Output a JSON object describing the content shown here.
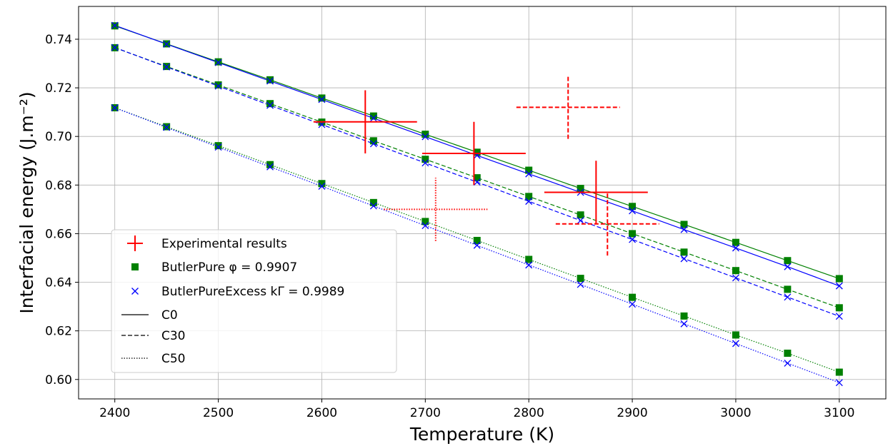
{
  "chart_data": {
    "type": "line",
    "xlabel": "Temperature (K)",
    "ylabel": "Interfacial energy (J.m⁻²)",
    "xlim": [
      2365,
      3145
    ],
    "ylim": [
      0.592,
      0.7535
    ],
    "xticks": [
      2400,
      2500,
      2600,
      2700,
      2800,
      2900,
      3000,
      3100
    ],
    "yticks": [
      0.6,
      0.62,
      0.64,
      0.66,
      0.68,
      0.7,
      0.72,
      0.74
    ],
    "xtick_labels": [
      "2400",
      "2500",
      "2600",
      "2700",
      "2800",
      "2900",
      "3000",
      "3100"
    ],
    "ytick_labels": [
      "0.60",
      "0.62",
      "0.64",
      "0.66",
      "0.68",
      "0.70",
      "0.72",
      "0.74"
    ],
    "grid": true,
    "legend_position": "lower-left",
    "legend": [
      {
        "label": "Experimental results",
        "marker": "plus",
        "color": "#ff0000"
      },
      {
        "label": "ButlerPure φ = 0.9907",
        "marker": "square",
        "color": "#008000"
      },
      {
        "label": "ButlerPureExcess kΓ = 0.9989",
        "marker": "x",
        "color": "#0000ff"
      },
      {
        "label": "C0",
        "line": "solid",
        "color": "#000000"
      },
      {
        "label": "C30",
        "line": "dashed",
        "color": "#000000"
      },
      {
        "label": "C50",
        "line": "dotted",
        "color": "#000000"
      }
    ],
    "x": [
      2400,
      2450,
      2500,
      2550,
      2600,
      2650,
      2700,
      2750,
      2800,
      2850,
      2900,
      2950,
      3000,
      3050,
      3100
    ],
    "series": [
      {
        "model": "ButlerPure",
        "composition": "C0",
        "color": "#008000",
        "marker": "square",
        "line": "solid",
        "values": [
          0.7455,
          0.7381,
          0.7307,
          0.7233,
          0.7158,
          0.7084,
          0.7009,
          0.6935,
          0.6861,
          0.6786,
          0.6712,
          0.6638,
          0.6564,
          0.6489,
          0.6415
        ]
      },
      {
        "model": "ButlerPureExcess",
        "composition": "C0",
        "color": "#0000ff",
        "marker": "x",
        "line": "solid",
        "values": [
          0.7457,
          0.738,
          0.7304,
          0.7228,
          0.7152,
          0.7075,
          0.6999,
          0.6922,
          0.6846,
          0.677,
          0.6694,
          0.6617,
          0.6541,
          0.6464,
          0.6385
        ]
      },
      {
        "model": "ButlerPure",
        "composition": "C30",
        "color": "#008000",
        "marker": "square",
        "line": "dashed",
        "values": [
          0.7365,
          0.7288,
          0.7212,
          0.7135,
          0.7059,
          0.6982,
          0.6906,
          0.683,
          0.6753,
          0.6677,
          0.66,
          0.6524,
          0.6448,
          0.6371,
          0.6295
        ]
      },
      {
        "model": "ButlerPureExcess",
        "composition": "C30",
        "color": "#0000ff",
        "marker": "x",
        "line": "dashed",
        "values": [
          0.7366,
          0.7286,
          0.7207,
          0.7128,
          0.7049,
          0.697,
          0.6891,
          0.6812,
          0.6733,
          0.6654,
          0.6576,
          0.6497,
          0.6418,
          0.6339,
          0.626
        ]
      },
      {
        "model": "ButlerPure",
        "composition": "C50",
        "color": "#008000",
        "marker": "square",
        "line": "dotted",
        "values": [
          0.7118,
          0.704,
          0.6962,
          0.6884,
          0.6806,
          0.6728,
          0.665,
          0.6572,
          0.6494,
          0.6416,
          0.6338,
          0.6261,
          0.6183,
          0.6108,
          0.603
        ]
      },
      {
        "model": "ButlerPureExcess",
        "composition": "C50",
        "color": "#0000ff",
        "marker": "x",
        "line": "dotted",
        "values": [
          0.7118,
          0.7037,
          0.6956,
          0.6875,
          0.6795,
          0.6714,
          0.6633,
          0.6552,
          0.6471,
          0.6391,
          0.631,
          0.6229,
          0.6148,
          0.6067,
          0.5987
        ]
      }
    ],
    "experimental": [
      {
        "composition": "C0",
        "line": "solid",
        "x": 2642,
        "y": 0.706,
        "x_err": 50,
        "y_err": 0.013
      },
      {
        "composition": "C0",
        "line": "solid",
        "x": 2747,
        "y": 0.693,
        "x_err": 50,
        "y_err": 0.013
      },
      {
        "composition": "C0",
        "line": "solid",
        "x": 2865,
        "y": 0.677,
        "x_err": 50,
        "y_err": 0.013
      },
      {
        "composition": "C30",
        "line": "dashed",
        "x": 2838,
        "y": 0.712,
        "x_err": 50,
        "y_err": 0.013
      },
      {
        "composition": "C30",
        "line": "dashed",
        "x": 2876,
        "y": 0.664,
        "x_err": 50,
        "y_err": 0.013
      },
      {
        "composition": "C50",
        "line": "dotted",
        "x": 2710,
        "y": 0.67,
        "x_err": 50,
        "y_err": 0.013
      }
    ]
  }
}
